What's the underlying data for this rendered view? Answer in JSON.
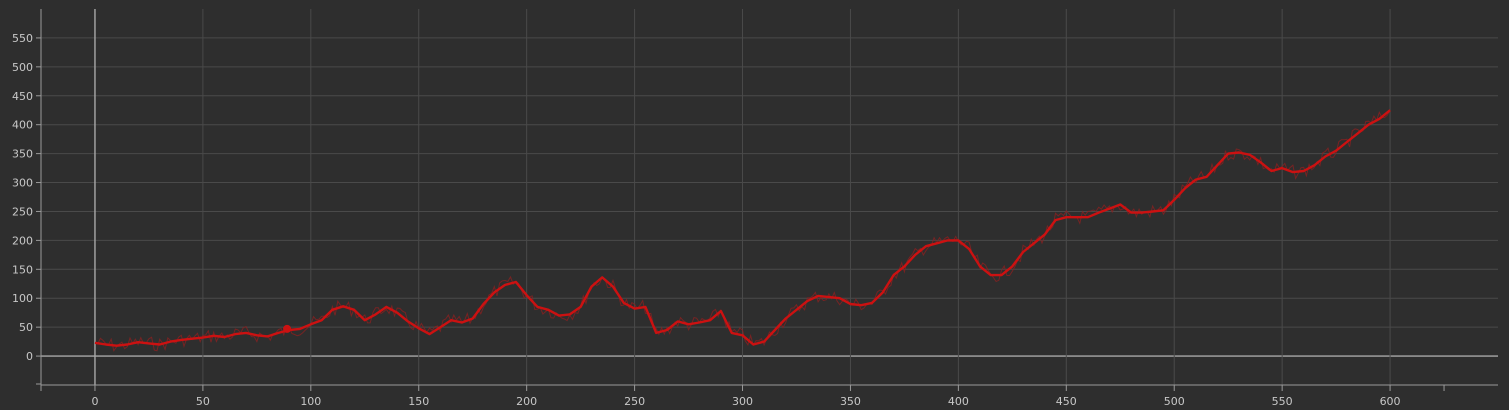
{
  "chart_data": {
    "type": "line",
    "title": "",
    "xlabel": "",
    "ylabel": "",
    "xlim": [
      -25,
      650
    ],
    "ylim": [
      -50,
      600
    ],
    "x_ticks": [
      0,
      50,
      100,
      150,
      200,
      250,
      300,
      350,
      400,
      450,
      500,
      550,
      600
    ],
    "y_ticks": [
      0,
      50,
      100,
      150,
      200,
      250,
      300,
      350,
      400,
      450,
      500,
      550
    ],
    "grid": true,
    "colors": {
      "line": "#cc1111",
      "noise": "#8a2020",
      "background": "#2e2e2e",
      "grid": "#4a4a4a",
      "text": "#c8c8c8"
    },
    "marker_point": {
      "x": 89,
      "y": 47
    },
    "series": [
      {
        "x": [
          0,
          5,
          10,
          15,
          20,
          25,
          30,
          35,
          40,
          45,
          50,
          55,
          60,
          65,
          70,
          75,
          80,
          85,
          90,
          95,
          100,
          105,
          110,
          115,
          120,
          125,
          130,
          135,
          140,
          145,
          150,
          155,
          160,
          165,
          170,
          175,
          180,
          185,
          190,
          195,
          200,
          205,
          210,
          215,
          220,
          225,
          230,
          235,
          240,
          245,
          250,
          255,
          260,
          265,
          270,
          275,
          280,
          285,
          290,
          295,
          300,
          305,
          310,
          315,
          320,
          325,
          330,
          335,
          340,
          345,
          350,
          355,
          360,
          365,
          370,
          375,
          380,
          385,
          390,
          395,
          400,
          405,
          410,
          415,
          420,
          425,
          430,
          435,
          440,
          445,
          450,
          455,
          460,
          465,
          470,
          475,
          480,
          485,
          490,
          495,
          500,
          505,
          510,
          515,
          520,
          525,
          530,
          535,
          540,
          545,
          550,
          555,
          560,
          565,
          570,
          575,
          580,
          585,
          590,
          595,
          600
        ],
        "values": [
          23,
          20,
          18,
          20,
          24,
          22,
          20,
          25,
          28,
          30,
          32,
          35,
          33,
          38,
          40,
          36,
          34,
          40,
          45,
          47,
          55,
          62,
          80,
          86,
          80,
          62,
          72,
          85,
          75,
          60,
          48,
          38,
          50,
          62,
          58,
          65,
          90,
          110,
          123,
          128,
          105,
          85,
          80,
          70,
          72,
          85,
          120,
          136,
          120,
          92,
          82,
          85,
          40,
          45,
          60,
          55,
          58,
          62,
          78,
          40,
          36,
          20,
          25,
          45,
          65,
          80,
          95,
          104,
          102,
          100,
          90,
          88,
          92,
          110,
          140,
          155,
          175,
          190,
          195,
          200,
          200,
          185,
          155,
          140,
          140,
          155,
          180,
          195,
          210,
          235,
          240,
          240,
          240,
          248,
          255,
          262,
          248,
          248,
          250,
          252,
          270,
          290,
          305,
          310,
          330,
          350,
          352,
          348,
          335,
          320,
          325,
          318,
          320,
          330,
          345,
          355,
          370,
          385,
          400,
          410,
          425
        ]
      }
    ]
  }
}
